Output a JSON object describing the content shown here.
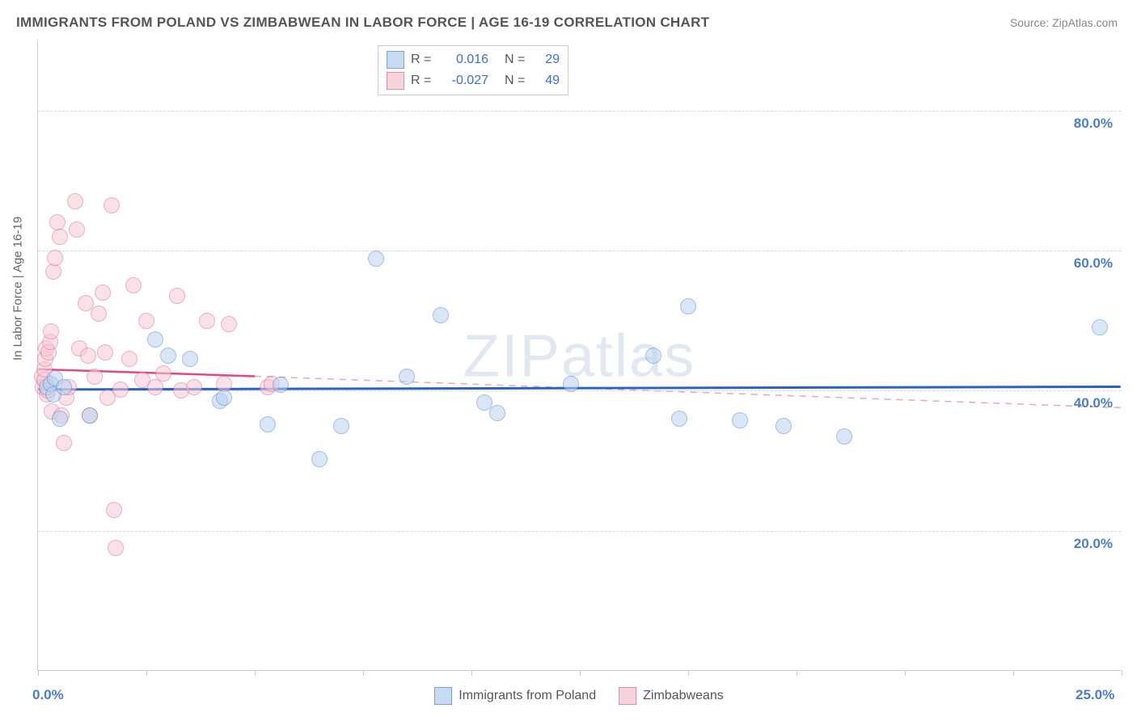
{
  "title": "IMMIGRANTS FROM POLAND VS ZIMBABWEAN IN LABOR FORCE | AGE 16-19 CORRELATION CHART",
  "source": "Source: ZipAtlas.com",
  "watermark": "ZIPatlas",
  "y_axis_label": "In Labor Force | Age 16-19",
  "chart": {
    "type": "scatter",
    "xlim": [
      0,
      25
    ],
    "ylim": [
      0,
      90
    ],
    "x_ticks": [
      0,
      2.5,
      5,
      7.5,
      10,
      12.5,
      15,
      17.5,
      20,
      22.5,
      25
    ],
    "x_tick_labels": {
      "0": "0.0%",
      "25": "25.0%"
    },
    "y_ticks": [
      20,
      40,
      60,
      80
    ],
    "y_tick_labels": [
      "20.0%",
      "40.0%",
      "60.0%",
      "80.0%"
    ],
    "grid_y": [
      20,
      40,
      60,
      80
    ],
    "background_color": "#ffffff",
    "grid_color": "#d8d8d8",
    "marker_radius": 10,
    "marker_stroke_width": 1.2,
    "series": [
      {
        "name": "Immigrants from Poland",
        "fill": "#b9d3f0",
        "stroke": "#5b8bd4",
        "fill_opacity": 0.55,
        "R": "0.016",
        "N": "29",
        "trend": {
          "y_start": 40.1,
          "y_end": 40.5,
          "color": "#2b61c4",
          "width": 3,
          "dash": "none"
        },
        "points": [
          [
            0.2,
            40.5
          ],
          [
            0.3,
            41.0
          ],
          [
            0.35,
            39.5
          ],
          [
            0.4,
            41.8
          ],
          [
            0.5,
            36.0
          ],
          [
            0.6,
            40.5
          ],
          [
            1.2,
            36.5
          ],
          [
            2.7,
            47.3
          ],
          [
            3.0,
            45.0
          ],
          [
            3.5,
            44.5
          ],
          [
            4.2,
            38.5
          ],
          [
            4.3,
            39.0
          ],
          [
            5.3,
            35.2
          ],
          [
            5.6,
            40.8
          ],
          [
            6.5,
            30.2
          ],
          [
            7.0,
            35.0
          ],
          [
            7.8,
            58.8
          ],
          [
            8.5,
            42.0
          ],
          [
            9.3,
            50.8
          ],
          [
            10.3,
            38.3
          ],
          [
            10.6,
            36.8
          ],
          [
            12.3,
            41.0
          ],
          [
            14.2,
            45.0
          ],
          [
            14.8,
            36.0
          ],
          [
            15.0,
            52.0
          ],
          [
            16.2,
            35.8
          ],
          [
            17.2,
            35.0
          ],
          [
            18.6,
            33.5
          ],
          [
            24.5,
            49.0
          ]
        ]
      },
      {
        "name": "Zimbabweans",
        "fill": "#f6c9d5",
        "stroke": "#e16f93",
        "fill_opacity": 0.55,
        "R": "-0.027",
        "N": "49",
        "trend_solid": {
          "y_start": 43.0,
          "y_end_x": 5.0,
          "y_end": 42.0,
          "color": "#e04a7b",
          "width": 2.5
        },
        "trend_dash": {
          "x_start": 5.0,
          "y_start": 42.0,
          "y_end": 37.5,
          "color": "#e6a8ba",
          "width": 1.5
        },
        "points": [
          [
            0.1,
            42.0
          ],
          [
            0.12,
            40.5
          ],
          [
            0.14,
            41.5
          ],
          [
            0.15,
            43.0
          ],
          [
            0.16,
            44.5
          ],
          [
            0.18,
            46.0
          ],
          [
            0.2,
            39.5
          ],
          [
            0.22,
            40.0
          ],
          [
            0.25,
            45.5
          ],
          [
            0.28,
            47.0
          ],
          [
            0.3,
            48.5
          ],
          [
            0.32,
            37.0
          ],
          [
            0.35,
            57.0
          ],
          [
            0.4,
            59.0
          ],
          [
            0.45,
            64.0
          ],
          [
            0.5,
            62.0
          ],
          [
            0.55,
            36.5
          ],
          [
            0.6,
            32.5
          ],
          [
            0.65,
            39.0
          ],
          [
            0.7,
            40.5
          ],
          [
            0.85,
            67.0
          ],
          [
            0.9,
            63.0
          ],
          [
            0.95,
            46.0
          ],
          [
            1.1,
            52.5
          ],
          [
            1.15,
            45.0
          ],
          [
            1.2,
            36.5
          ],
          [
            1.3,
            42.0
          ],
          [
            1.4,
            51.0
          ],
          [
            1.5,
            54.0
          ],
          [
            1.55,
            45.5
          ],
          [
            1.6,
            39.0
          ],
          [
            1.7,
            66.5
          ],
          [
            1.75,
            23.0
          ],
          [
            1.8,
            17.5
          ],
          [
            1.9,
            40.2
          ],
          [
            2.1,
            44.5
          ],
          [
            2.2,
            55.0
          ],
          [
            2.4,
            41.5
          ],
          [
            2.5,
            50.0
          ],
          [
            2.7,
            40.5
          ],
          [
            2.9,
            42.5
          ],
          [
            3.2,
            53.5
          ],
          [
            3.3,
            40.0
          ],
          [
            3.6,
            40.5
          ],
          [
            3.9,
            50.0
          ],
          [
            4.3,
            41.0
          ],
          [
            4.4,
            49.5
          ],
          [
            5.3,
            40.5
          ],
          [
            5.4,
            41.0
          ]
        ]
      }
    ]
  },
  "legend_top": {
    "rows": [
      {
        "swatch_fill": "#b9d3f0",
        "swatch_stroke": "#5b8bd4",
        "r_label": "R =",
        "r_val": "0.016",
        "n_label": "N =",
        "n_val": "29"
      },
      {
        "swatch_fill": "#f6c9d5",
        "swatch_stroke": "#e16f93",
        "r_label": "R =",
        "r_val": "-0.027",
        "n_label": "N =",
        "n_val": "49"
      }
    ]
  },
  "legend_bottom": {
    "items": [
      {
        "swatch_fill": "#b9d3f0",
        "swatch_stroke": "#5b8bd4",
        "label": "Immigrants from Poland"
      },
      {
        "swatch_fill": "#f6c9d5",
        "swatch_stroke": "#e16f93",
        "label": "Zimbabweans"
      }
    ]
  }
}
